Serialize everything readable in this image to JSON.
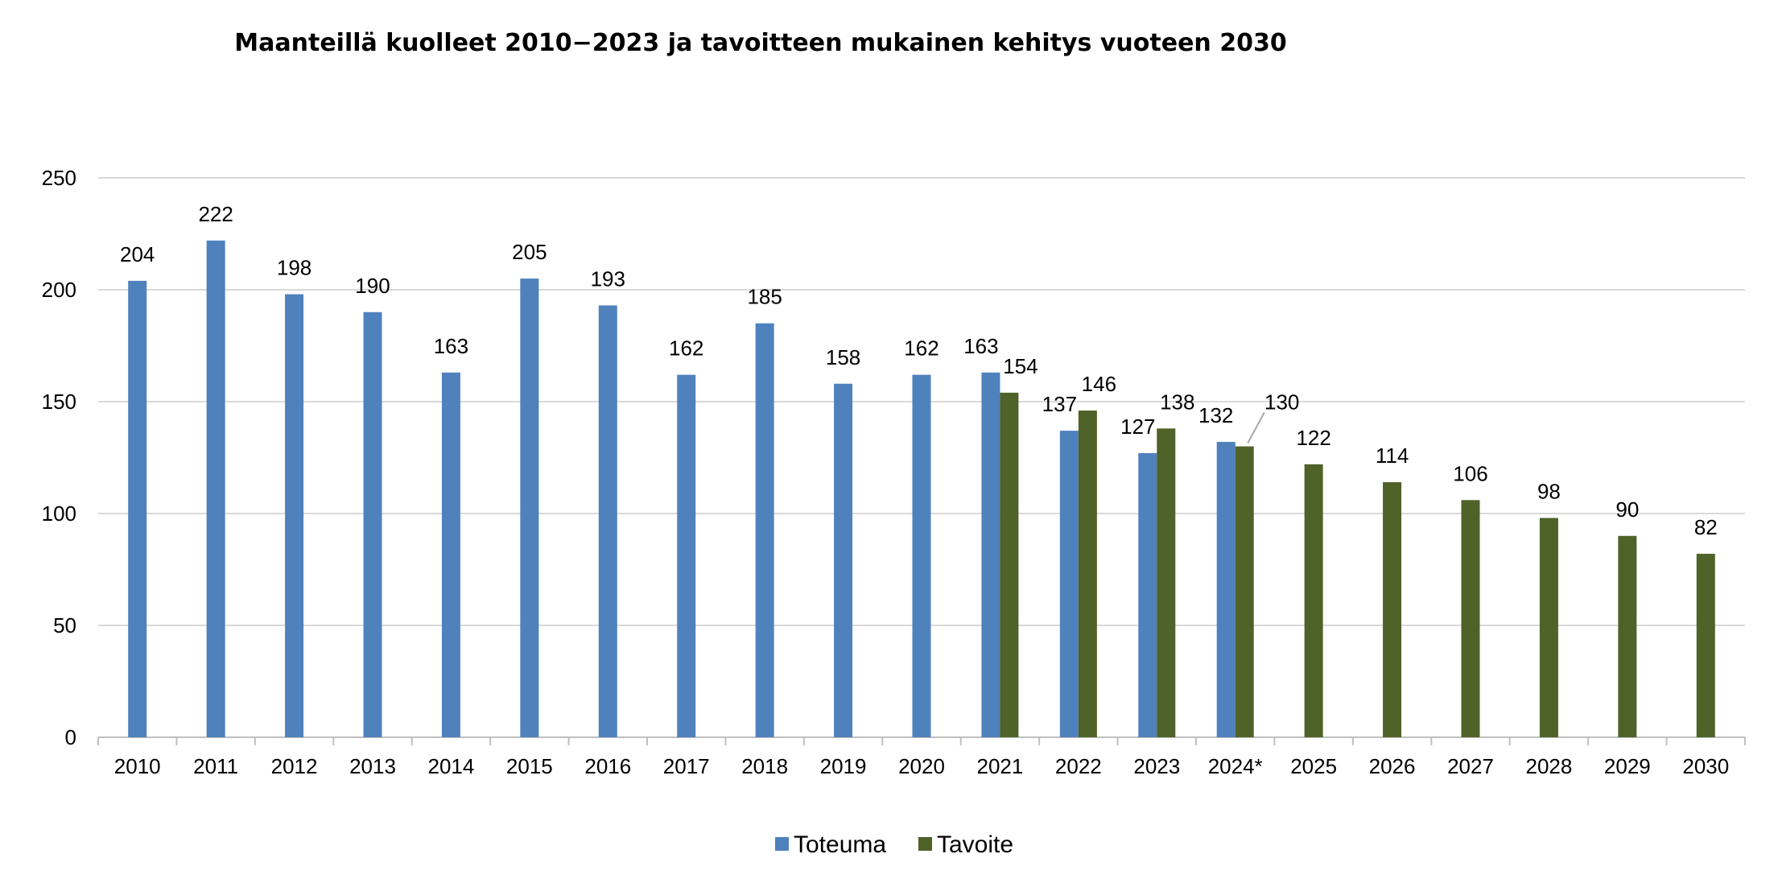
{
  "chart_data": {
    "type": "bar",
    "title": "Maanteillä kuolleet 2010−2023 ja tavoitteen mukainen kehitys vuoteen 2030",
    "xlabel": "",
    "ylabel": "",
    "ylim": [
      0,
      250
    ],
    "yticks": [
      "0",
      "50",
      "100",
      "150",
      "200",
      "250"
    ],
    "categories": [
      "2010",
      "2011",
      "2012",
      "2013",
      "2014",
      "2015",
      "2016",
      "2017",
      "2018",
      "2019",
      "2020",
      "2021",
      "2022",
      "2023",
      "2024*",
      "2025",
      "2026",
      "2027",
      "2028",
      "2029",
      "2030"
    ],
    "series": [
      {
        "name": "Toteuma",
        "color": "#4f81bd",
        "values": [
          204,
          222,
          198,
          190,
          163,
          205,
          193,
          162,
          185,
          158,
          162,
          163,
          137,
          127,
          132,
          null,
          null,
          null,
          null,
          null,
          null
        ]
      },
      {
        "name": "Tavoite",
        "color": "#4f6228",
        "values": [
          null,
          null,
          null,
          null,
          null,
          null,
          null,
          null,
          null,
          null,
          null,
          154,
          146,
          138,
          130,
          122,
          114,
          106,
          98,
          90,
          82
        ]
      }
    ],
    "grid": true,
    "legend": "bottom"
  }
}
